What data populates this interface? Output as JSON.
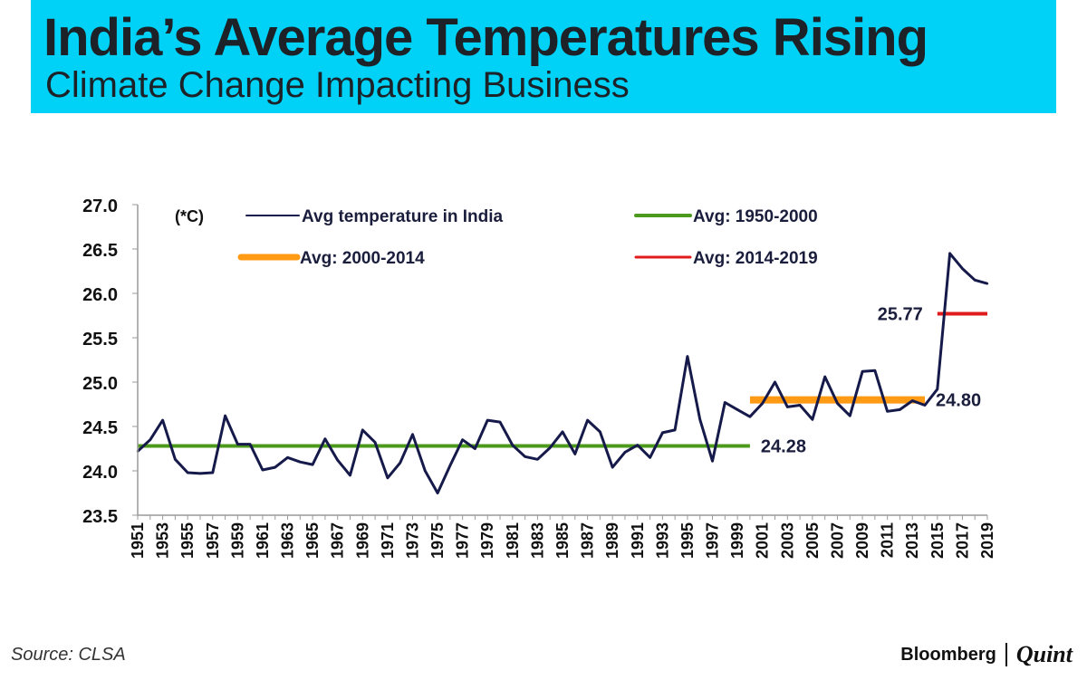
{
  "header": {
    "title": "India’s Average Temperatures Rising",
    "subtitle": "Climate Change Impacting Business"
  },
  "chart_data": {
    "type": "line",
    "title": "India’s Average Temperatures Rising",
    "unit_label": "(*C)",
    "xlabel": "",
    "ylabel": "",
    "ylim": [
      23.5,
      27.0
    ],
    "yticks": [
      "23.5",
      "24.0",
      "24.5",
      "25.0",
      "25.5",
      "26.0",
      "26.5",
      "27.0"
    ],
    "x_tick_labels": [
      "1951",
      "1953",
      "1955",
      "1957",
      "1959",
      "1961",
      "1963",
      "1965",
      "1967",
      "1969",
      "1971",
      "1973",
      "1975",
      "1977",
      "1979",
      "1981",
      "1983",
      "1985",
      "1987",
      "1989",
      "1991",
      "1993",
      "1995",
      "1997",
      "1999",
      "2001",
      "2003",
      "2005",
      "2007",
      "2009",
      "2011",
      "2013",
      "2015",
      "2017",
      "2019"
    ],
    "series": [
      {
        "name": "Avg temperature in India",
        "color": "#161a4a",
        "x": [
          1951,
          1952,
          1953,
          1954,
          1955,
          1956,
          1957,
          1958,
          1959,
          1960,
          1961,
          1962,
          1963,
          1964,
          1965,
          1966,
          1967,
          1968,
          1969,
          1970,
          1971,
          1972,
          1973,
          1974,
          1975,
          1976,
          1977,
          1978,
          1979,
          1980,
          1981,
          1982,
          1983,
          1984,
          1985,
          1986,
          1987,
          1988,
          1989,
          1990,
          1991,
          1992,
          1993,
          1994,
          1995,
          1996,
          1997,
          1998,
          1999,
          2000,
          2001,
          2002,
          2003,
          2004,
          2005,
          2006,
          2007,
          2008,
          2009,
          2010,
          2011,
          2012,
          2013,
          2014,
          2015,
          2016,
          2017,
          2018,
          2019
        ],
        "values": [
          24.22,
          24.35,
          24.57,
          24.13,
          23.98,
          23.97,
          23.98,
          24.62,
          24.3,
          24.3,
          24.01,
          24.04,
          24.15,
          24.1,
          24.07,
          24.36,
          24.12,
          23.95,
          24.46,
          24.32,
          23.92,
          24.09,
          24.41,
          24.0,
          23.75,
          24.06,
          24.35,
          24.25,
          24.57,
          24.55,
          24.29,
          24.16,
          24.13,
          24.26,
          24.44,
          24.19,
          24.57,
          24.44,
          24.04,
          24.21,
          24.29,
          24.15,
          24.43,
          24.46,
          25.29,
          24.58,
          24.11,
          24.77,
          24.69,
          24.61,
          24.76,
          25.0,
          24.72,
          24.74,
          24.58,
          25.06,
          24.76,
          24.62,
          25.12,
          25.13,
          24.67,
          24.69,
          24.79,
          24.74,
          24.92,
          26.45,
          26.28,
          26.15,
          26.11
        ]
      }
    ],
    "reference_lines": [
      {
        "name": "Avg: 1950-2000",
        "value": 24.28,
        "label": "24.28",
        "x_range": [
          1951,
          2000
        ],
        "color": "#4c9a1c"
      },
      {
        "name": "Avg: 2000-2014",
        "value": 24.8,
        "label": "24.80",
        "x_range": [
          2000,
          2014
        ],
        "color": "#ff9a14"
      },
      {
        "name": "Avg: 2014-2019",
        "value": 25.77,
        "label": "25.77",
        "x_range": [
          2015,
          2019
        ],
        "color": "#e01b1b"
      }
    ],
    "legend": [
      {
        "label": "Avg temperature in India",
        "color": "#161a4a"
      },
      {
        "label": "Avg: 1950-2000",
        "color": "#4c9a1c"
      },
      {
        "label": "Avg: 2000-2014",
        "color": "#ff9a14"
      },
      {
        "label": "Avg: 2014-2019",
        "color": "#e01b1b"
      }
    ]
  },
  "footer": {
    "source": "Source: CLSA",
    "brand_primary": "Bloomberg",
    "brand_secondary": "Quint"
  }
}
